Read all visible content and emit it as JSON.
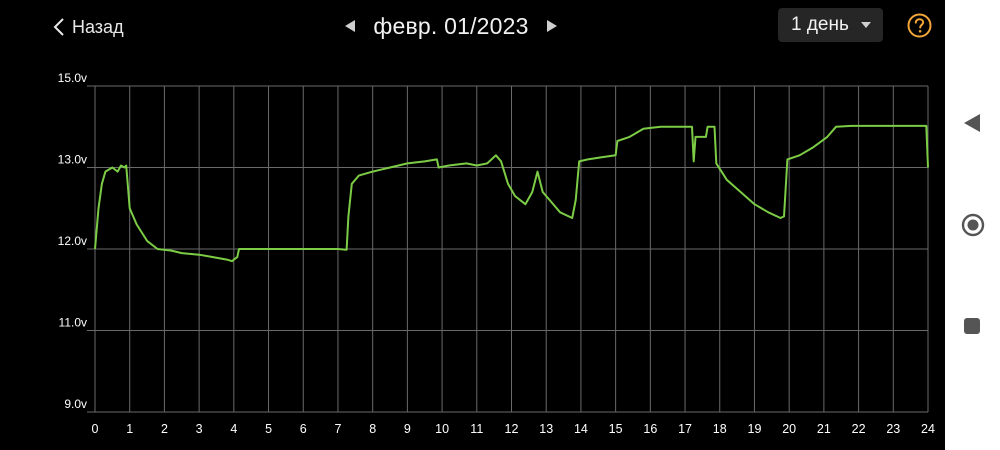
{
  "header": {
    "back_label": "Назад",
    "date": "февр. 01/2023",
    "period": "1 день"
  },
  "icons": {
    "back": "chevron-left-icon",
    "prev": "triangle-left-icon",
    "next": "triangle-right-icon",
    "dropdown": "caret-down-icon",
    "help": "help-circle-icon",
    "nav_back": "android-back-icon",
    "nav_home": "android-home-icon",
    "nav_recents": "android-recents-icon"
  },
  "colors": {
    "line": "#7ccc45",
    "accent": "#f3a738",
    "grid": "#6a6a6a",
    "background": "#000000"
  },
  "chart_data": {
    "type": "line",
    "x_ticks": [
      0,
      1,
      2,
      3,
      4,
      5,
      6,
      7,
      8,
      9,
      10,
      11,
      12,
      13,
      14,
      15,
      16,
      17,
      18,
      19,
      20,
      21,
      22,
      23,
      24
    ],
    "y_ticks": [
      {
        "value": 9.0,
        "label": "9.0v"
      },
      {
        "value": 11.0,
        "label": "11.0v"
      },
      {
        "value": 12.0,
        "label": "12.0v"
      },
      {
        "value": 13.0,
        "label": "13.0v"
      },
      {
        "value": 15.0,
        "label": "15.0v"
      }
    ],
    "series": [
      {
        "values": [
          [
            0.0,
            12.0
          ],
          [
            0.1,
            12.5
          ],
          [
            0.2,
            12.8
          ],
          [
            0.3,
            12.95
          ],
          [
            0.5,
            13.0
          ],
          [
            0.65,
            12.95
          ],
          [
            0.75,
            13.05
          ],
          [
            0.85,
            13.0
          ],
          [
            0.9,
            13.05
          ],
          [
            1.0,
            12.5
          ],
          [
            1.2,
            12.3
          ],
          [
            1.5,
            12.1
          ],
          [
            1.8,
            12.0
          ],
          [
            2.2,
            11.98
          ],
          [
            2.5,
            11.95
          ],
          [
            3.0,
            11.93
          ],
          [
            3.4,
            11.9
          ],
          [
            3.8,
            11.87
          ],
          [
            3.95,
            11.85
          ],
          [
            4.0,
            11.87
          ],
          [
            4.1,
            11.9
          ],
          [
            4.15,
            12.0
          ],
          [
            4.5,
            12.0
          ],
          [
            5.0,
            12.0
          ],
          [
            5.5,
            12.0
          ],
          [
            6.0,
            12.0
          ],
          [
            6.5,
            12.0
          ],
          [
            7.0,
            12.0
          ],
          [
            7.25,
            11.99
          ],
          [
            7.3,
            12.4
          ],
          [
            7.4,
            12.8
          ],
          [
            7.6,
            12.9
          ],
          [
            8.0,
            12.95
          ],
          [
            8.5,
            13.0
          ],
          [
            9.0,
            13.1
          ],
          [
            9.5,
            13.15
          ],
          [
            9.85,
            13.2
          ],
          [
            9.9,
            13.0
          ],
          [
            10.2,
            13.05
          ],
          [
            10.7,
            13.1
          ],
          [
            11.0,
            13.05
          ],
          [
            11.3,
            13.1
          ],
          [
            11.55,
            13.3
          ],
          [
            11.7,
            13.15
          ],
          [
            11.9,
            12.8
          ],
          [
            12.1,
            12.65
          ],
          [
            12.4,
            12.55
          ],
          [
            12.6,
            12.7
          ],
          [
            12.75,
            12.95
          ],
          [
            12.9,
            12.7
          ],
          [
            13.1,
            12.6
          ],
          [
            13.4,
            12.45
          ],
          [
            13.75,
            12.38
          ],
          [
            13.85,
            12.6
          ],
          [
            13.95,
            13.15
          ],
          [
            14.2,
            13.2
          ],
          [
            14.6,
            13.25
          ],
          [
            15.0,
            13.3
          ],
          [
            15.05,
            13.65
          ],
          [
            15.4,
            13.75
          ],
          [
            15.8,
            13.95
          ],
          [
            16.3,
            14.0
          ],
          [
            16.8,
            14.0
          ],
          [
            17.2,
            14.0
          ],
          [
            17.25,
            13.15
          ],
          [
            17.3,
            13.75
          ],
          [
            17.6,
            13.75
          ],
          [
            17.65,
            14.0
          ],
          [
            17.85,
            14.0
          ],
          [
            17.9,
            13.1
          ],
          [
            18.2,
            12.85
          ],
          [
            18.6,
            12.7
          ],
          [
            19.0,
            12.55
          ],
          [
            19.4,
            12.45
          ],
          [
            19.75,
            12.38
          ],
          [
            19.85,
            12.4
          ],
          [
            19.95,
            13.2
          ],
          [
            20.3,
            13.3
          ],
          [
            20.7,
            13.5
          ],
          [
            21.1,
            13.75
          ],
          [
            21.35,
            14.0
          ],
          [
            21.8,
            14.02
          ],
          [
            22.4,
            14.02
          ],
          [
            23.0,
            14.02
          ],
          [
            23.5,
            14.02
          ],
          [
            23.95,
            14.02
          ],
          [
            24.0,
            13.0
          ]
        ]
      }
    ],
    "grid": true,
    "xlim": [
      0,
      24
    ]
  }
}
